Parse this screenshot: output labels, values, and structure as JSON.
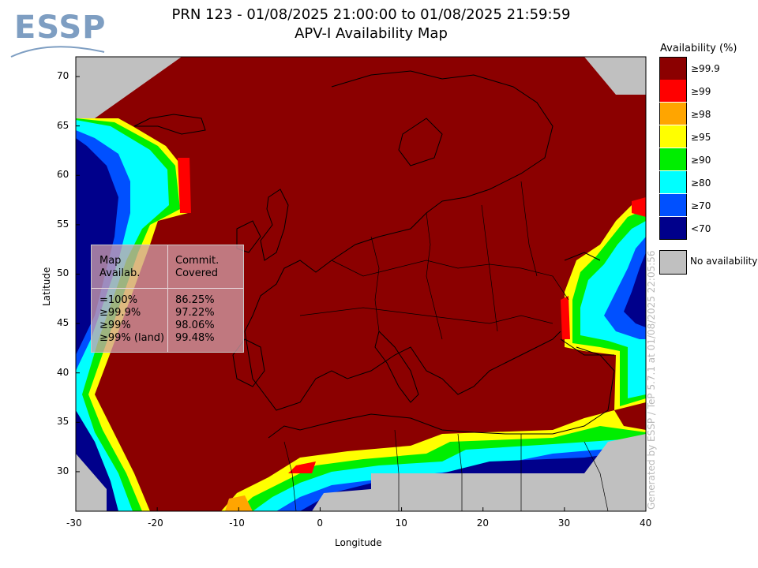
{
  "header": {
    "logo_text": "ESSP",
    "title": "PRN 123 - 01/08/2025 21:00:00 to 01/08/2025 21:59:59",
    "subtitle": "APV-I Availability Map"
  },
  "map": {
    "x_label": "Longitude",
    "y_label": "Latitude",
    "x_ticks": [
      "-30",
      "-20",
      "-10",
      "0",
      "10",
      "20",
      "30",
      "40"
    ],
    "y_ticks": [
      "70",
      "65",
      "60",
      "55",
      "50",
      "45",
      "40",
      "35",
      "30"
    ],
    "lon_range": [
      -30,
      40
    ],
    "lat_range": [
      26,
      72
    ]
  },
  "legend": {
    "title": "Availability (%)",
    "items": [
      {
        "label": "≥99.9",
        "color": "#8b0000"
      },
      {
        "label": "≥99",
        "color": "#ff0000"
      },
      {
        "label": "≥98",
        "color": "#ffa500"
      },
      {
        "label": "≥95",
        "color": "#ffff00"
      },
      {
        "label": "≥90",
        "color": "#00ee00"
      },
      {
        "label": "≥80",
        "color": "#00ffff"
      },
      {
        "label": "≥70",
        "color": "#0050ff"
      },
      {
        "label": "<70",
        "color": "#00008b"
      }
    ],
    "no_availability": {
      "label": "No availability",
      "color": "#c0c0c0"
    }
  },
  "stats": {
    "header_left": "Map\nAvailab.",
    "header_right": "Commit.\nCovered",
    "rows_left": "=100%\n≥99.9%\n≥99%\n≥99% (land)",
    "rows_right": "86.25%\n97.22%\n98.06%\n99.48%"
  },
  "credit": "Generated by ESSP / TeP 5.7.1 at 01/08/2025 22:05:56",
  "colors": {
    "dark_red": "#8b0000",
    "dark_blue": "#00008b",
    "grey": "#c0c0c0"
  }
}
